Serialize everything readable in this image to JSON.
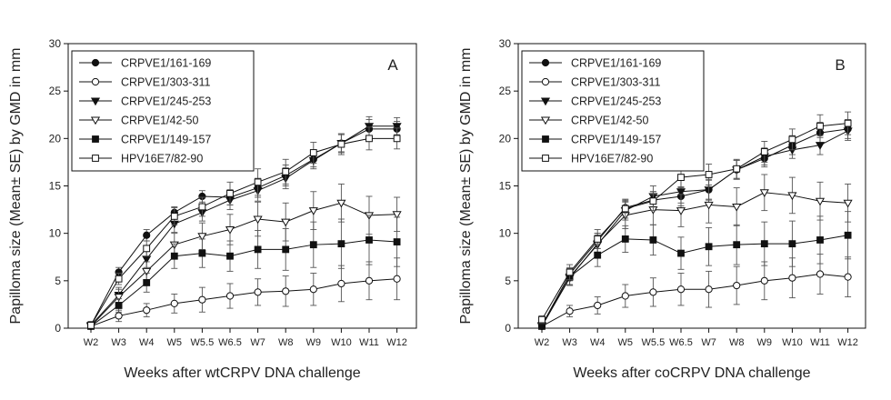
{
  "chart_data": [
    {
      "type": "line",
      "panel_label": "A",
      "xlabel": "Weeks after wtCRPV DNA challenge",
      "ylabel": "Papilloma size (Mean± SE) by GMD in mm",
      "categories": [
        "W2",
        "W3",
        "W4",
        "W5",
        "W5.5",
        "W6.5",
        "W7",
        "W8",
        "W9",
        "W10",
        "W11",
        "W12"
      ],
      "ylim": [
        0,
        30
      ],
      "yticks": [
        0,
        5,
        10,
        15,
        20,
        25,
        30
      ],
      "legend_position": "top-left",
      "series": [
        {
          "name": "CRPVE1/161-169",
          "marker": "circle-filled",
          "values": [
            0.3,
            5.9,
            9.8,
            12.2,
            13.9,
            13.8,
            14.8,
            16.1,
            17.8,
            19.5,
            21.0,
            21.0
          ],
          "errors": [
            0.4,
            0.5,
            0.6,
            0.6,
            0.6,
            0.8,
            1.0,
            1.1,
            0.8,
            1.0,
            1.0,
            0.8
          ]
        },
        {
          "name": "CRPVE1/303-311",
          "marker": "circle-open",
          "values": [
            0.2,
            1.3,
            1.9,
            2.6,
            3.0,
            3.4,
            3.8,
            3.9,
            4.1,
            4.7,
            5.0,
            5.2
          ],
          "errors": [
            0.3,
            0.6,
            0.7,
            1.0,
            1.3,
            1.3,
            1.4,
            1.6,
            1.7,
            1.9,
            2.0,
            2.2
          ]
        },
        {
          "name": "CRPVE1/245-253",
          "marker": "triangle-down-filled",
          "values": [
            0.3,
            3.5,
            7.3,
            11.0,
            12.2,
            13.5,
            14.5,
            15.8,
            17.7,
            19.5,
            21.3,
            21.3
          ],
          "errors": [
            0.4,
            0.8,
            0.9,
            0.9,
            0.9,
            1.0,
            1.1,
            1.1,
            0.9,
            0.9,
            1.0,
            0.9
          ]
        },
        {
          "name": "CRPVE1/42-50",
          "marker": "triangle-down-open",
          "values": [
            0.2,
            3.3,
            6.0,
            8.8,
            9.7,
            10.4,
            11.5,
            11.2,
            12.4,
            13.2,
            11.9,
            12.0
          ],
          "errors": [
            0.3,
            0.8,
            1.0,
            1.2,
            1.4,
            1.6,
            1.8,
            2.0,
            2.0,
            2.0,
            2.0,
            1.8
          ]
        },
        {
          "name": "CRPVE1/149-157",
          "marker": "square-filled",
          "values": [
            0.2,
            2.4,
            4.8,
            7.6,
            7.9,
            7.6,
            8.3,
            8.3,
            8.8,
            8.9,
            9.3,
            9.1
          ],
          "errors": [
            0.3,
            0.7,
            1.0,
            1.3,
            1.5,
            1.6,
            2.0,
            2.2,
            2.4,
            2.6,
            2.6,
            2.6
          ]
        },
        {
          "name": "HPV16E7/82-90",
          "marker": "square-open",
          "values": [
            0.3,
            5.2,
            8.4,
            11.8,
            12.8,
            14.2,
            15.4,
            16.5,
            18.5,
            19.4,
            20.0,
            20.0
          ],
          "errors": [
            0.4,
            0.6,
            0.8,
            0.9,
            1.0,
            1.2,
            1.4,
            1.3,
            1.1,
            1.1,
            1.2,
            1.1
          ]
        }
      ]
    },
    {
      "type": "line",
      "panel_label": "B",
      "xlabel": "Weeks after coCRPV DNA challenge",
      "ylabel": "Papilloma size (Mean± SE) by GMD in mm",
      "categories": [
        "W2",
        "W3",
        "W4",
        "W5",
        "W5.5",
        "W6.5",
        "W7",
        "W8",
        "W9",
        "W10",
        "W11",
        "W12"
      ],
      "ylim": [
        0,
        30
      ],
      "yticks": [
        0,
        5,
        10,
        15,
        20,
        25,
        30
      ],
      "legend_position": "top-left",
      "series": [
        {
          "name": "CRPVE1/161-169",
          "marker": "circle-filled",
          "values": [
            0.3,
            5.7,
            9.2,
            12.7,
            13.5,
            13.9,
            14.6,
            16.7,
            17.9,
            19.3,
            20.6,
            21.0
          ],
          "errors": [
            0.3,
            0.7,
            0.8,
            0.8,
            0.9,
            1.0,
            1.0,
            1.0,
            0.9,
            1.0,
            1.1,
            1.0
          ]
        },
        {
          "name": "CRPVE1/303-311",
          "marker": "circle-open",
          "values": [
            0.2,
            1.8,
            2.4,
            3.4,
            3.8,
            4.1,
            4.1,
            4.5,
            5.0,
            5.3,
            5.7,
            5.4
          ],
          "errors": [
            0.3,
            0.6,
            0.9,
            1.2,
            1.5,
            1.7,
            1.9,
            2.0,
            2.0,
            2.1,
            2.1,
            2.1
          ]
        },
        {
          "name": "CRPVE1/245-253",
          "marker": "triangle-down-filled",
          "values": [
            0.3,
            5.4,
            8.8,
            12.4,
            13.9,
            14.4,
            14.6,
            16.7,
            18.1,
            18.8,
            19.3,
            20.8
          ],
          "errors": [
            0.3,
            0.8,
            1.0,
            1.0,
            1.1,
            1.2,
            1.1,
            1.0,
            0.9,
            0.9,
            1.0,
            1.0
          ]
        },
        {
          "name": "CRPVE1/42-50",
          "marker": "triangle-down-open",
          "values": [
            0.2,
            5.3,
            8.9,
            11.9,
            12.5,
            12.4,
            13.0,
            12.8,
            14.3,
            14.0,
            13.4,
            13.2
          ],
          "errors": [
            0.3,
            0.8,
            1.1,
            1.4,
            1.6,
            1.7,
            1.9,
            2.0,
            1.9,
            1.9,
            2.0,
            2.0
          ]
        },
        {
          "name": "CRPVE1/149-157",
          "marker": "square-filled",
          "values": [
            0.2,
            5.4,
            7.7,
            9.4,
            9.3,
            7.9,
            8.6,
            8.8,
            8.9,
            8.9,
            9.3,
            9.8
          ],
          "errors": [
            0.3,
            0.9,
            1.2,
            1.4,
            1.6,
            1.7,
            2.0,
            2.1,
            2.3,
            2.4,
            2.5,
            2.5
          ]
        },
        {
          "name": "HPV16E7/82-90",
          "marker": "square-open",
          "values": [
            0.9,
            5.9,
            9.4,
            12.6,
            13.4,
            15.9,
            16.2,
            16.8,
            18.6,
            19.9,
            21.3,
            21.6
          ],
          "errors": [
            0.4,
            0.8,
            1.0,
            1.0,
            1.0,
            1.1,
            1.1,
            1.0,
            1.1,
            1.1,
            1.2,
            1.2
          ]
        }
      ]
    }
  ]
}
